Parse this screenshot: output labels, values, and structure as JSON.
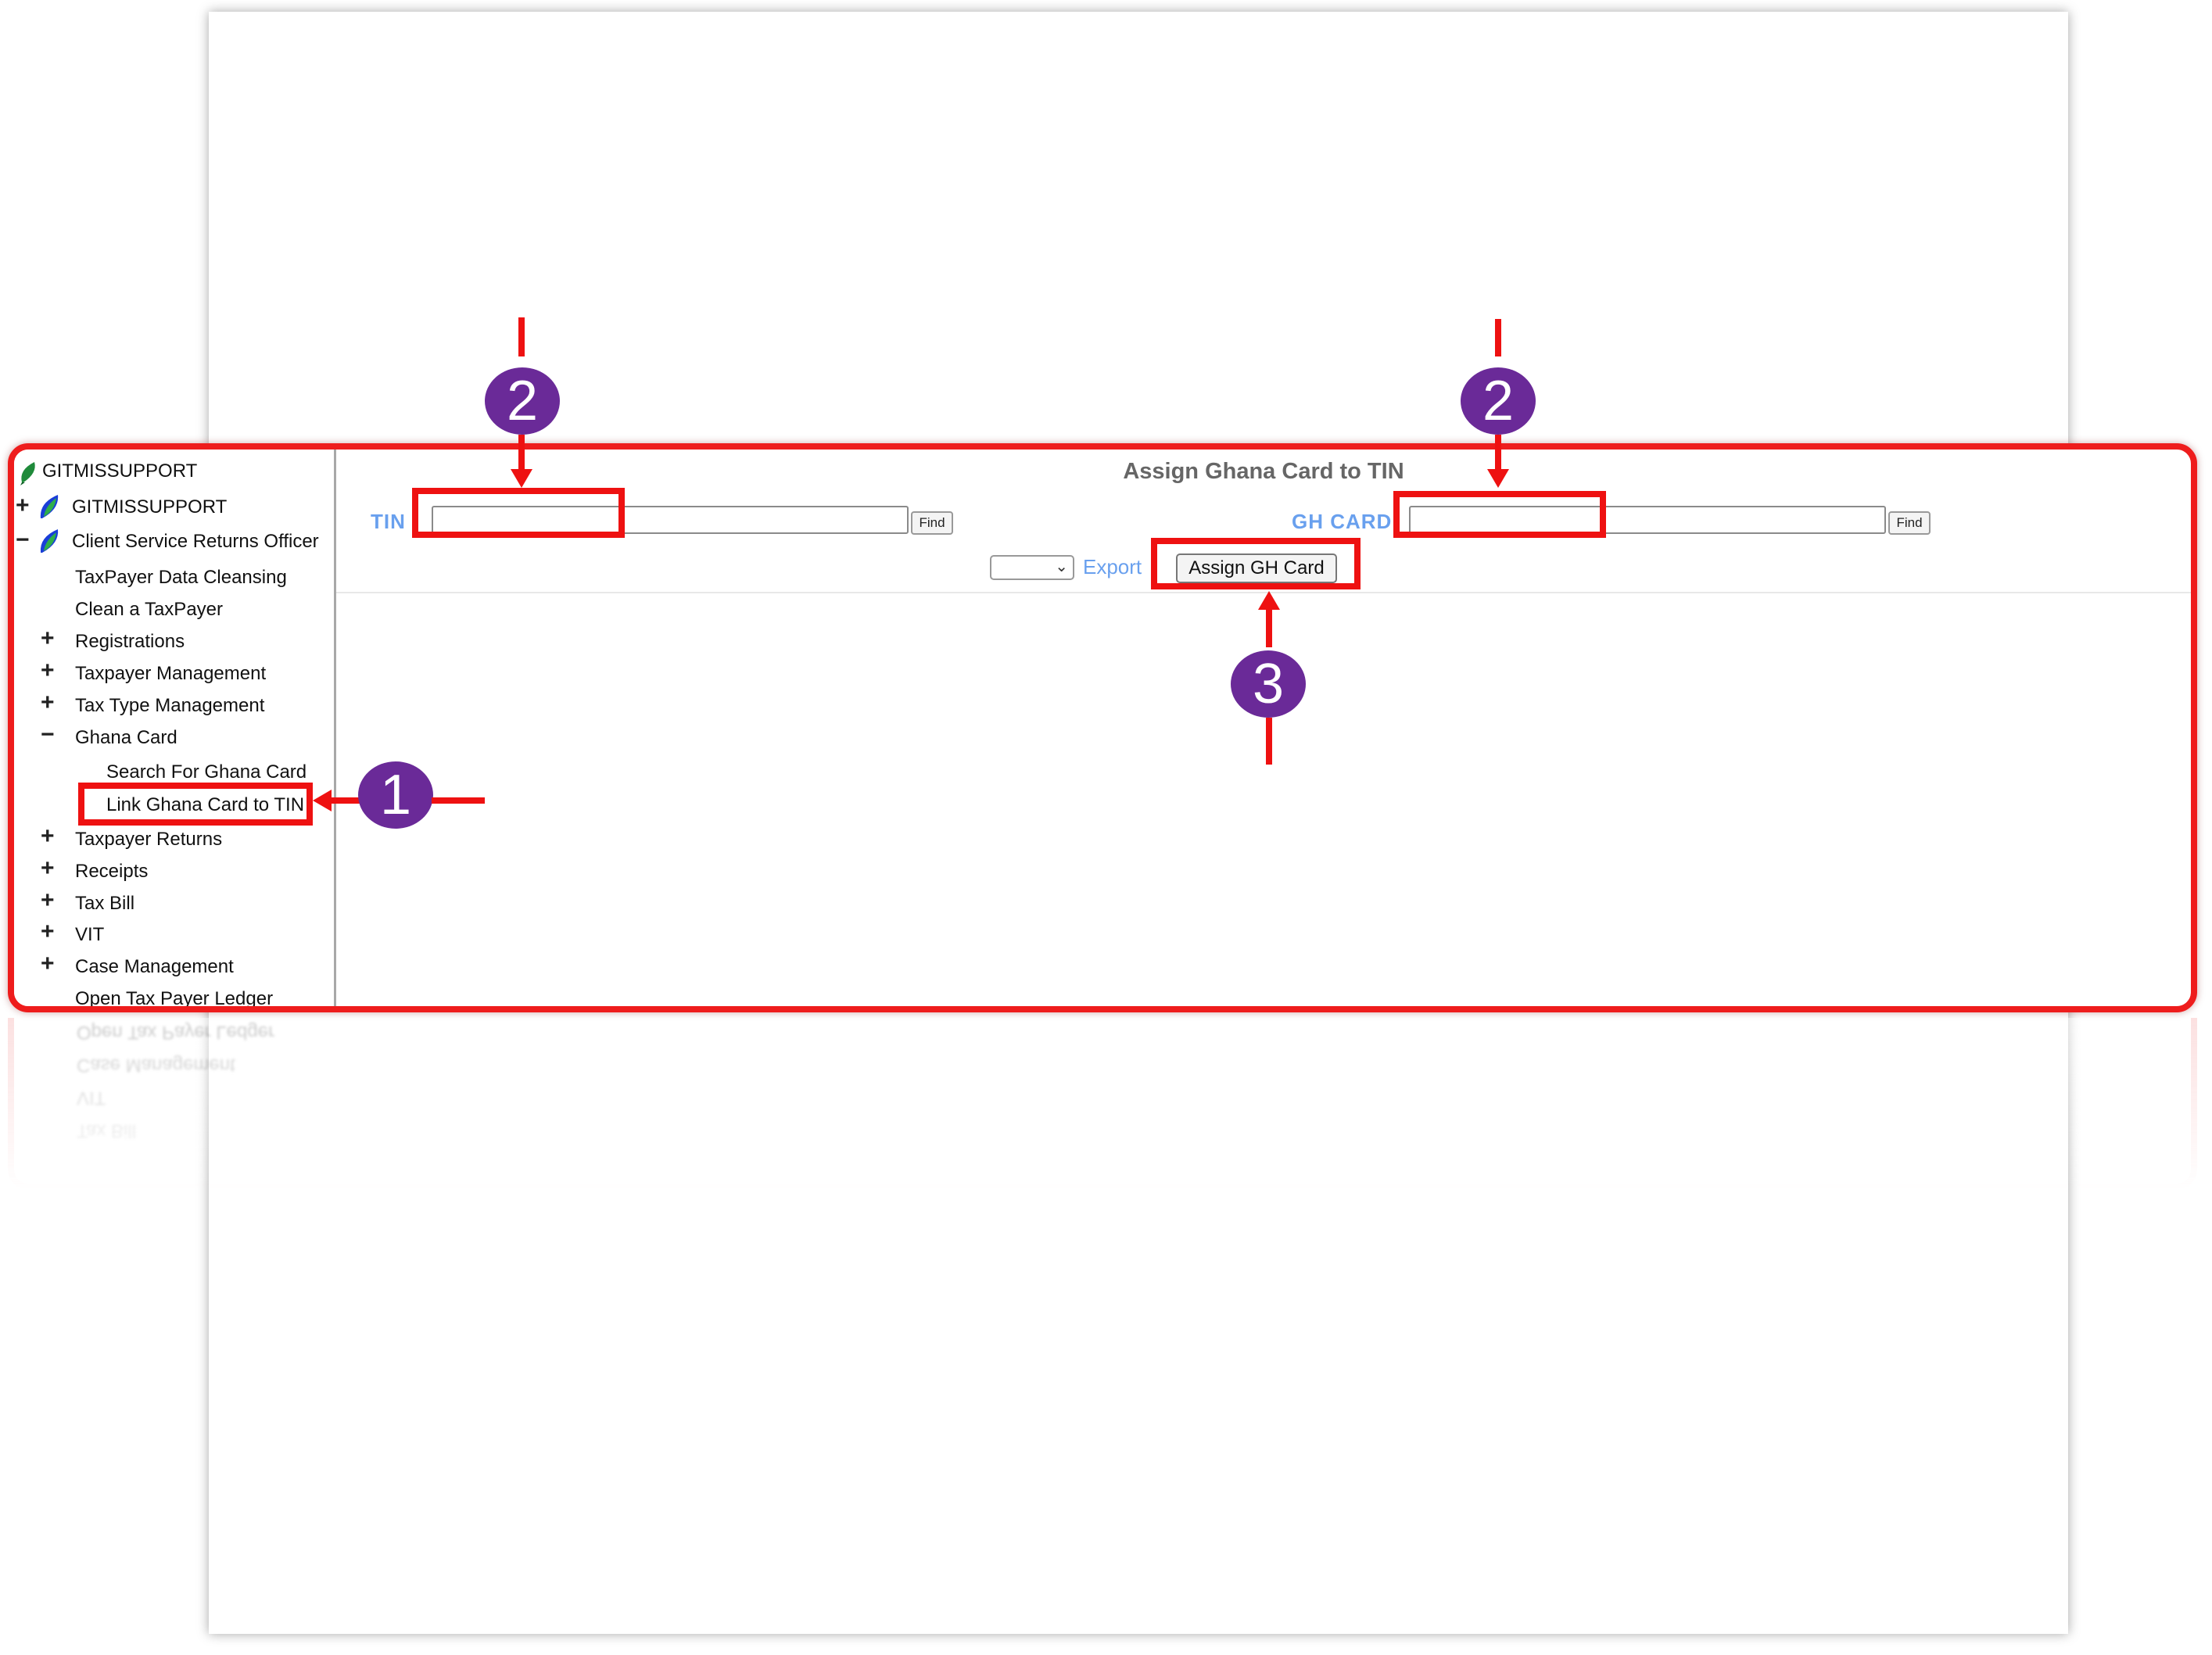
{
  "sidebar": {
    "root": {
      "label": "GITMISSUPPORT"
    },
    "groups": [
      {
        "label": "GITMISSUPPORT",
        "toggle": "+"
      },
      {
        "label": "Client Service Returns Officer",
        "toggle": "−"
      }
    ],
    "items": [
      {
        "label": "TaxPayer Data Cleansing",
        "toggle": ""
      },
      {
        "label": "Clean a TaxPayer",
        "toggle": ""
      },
      {
        "label": "Registrations",
        "toggle": "+"
      },
      {
        "label": "Taxpayer Management",
        "toggle": "+"
      },
      {
        "label": "Tax Type Management",
        "toggle": "+"
      },
      {
        "label": "Ghana Card",
        "toggle": "−"
      },
      {
        "label": "Taxpayer Returns",
        "toggle": "+"
      },
      {
        "label": "Receipts",
        "toggle": "+"
      },
      {
        "label": "Tax Bill",
        "toggle": "+"
      },
      {
        "label": "VIT",
        "toggle": "+"
      },
      {
        "label": "Case Management",
        "toggle": "+"
      },
      {
        "label": "Open Tax Payer Ledger",
        "toggle": ""
      }
    ],
    "ghana_card_children": [
      {
        "label": "Search For Ghana Card"
      },
      {
        "label": "Link Ghana Card to TIN"
      }
    ]
  },
  "main": {
    "title": "Assign Ghana Card to TIN",
    "tin_label": "TIN",
    "tin_value": "",
    "ghcard_label": "GH CARD",
    "ghcard_value": "",
    "find_label": "Find",
    "export_format_value": "",
    "export_label": "Export",
    "assign_button_label": "Assign GH Card"
  },
  "annotations": {
    "badge_1": "1",
    "badge_2": "2",
    "badge_3": "3"
  },
  "colors": {
    "highlight": "#ee1111",
    "badge": "#6a2a98",
    "label_blue": "#69a0ee"
  }
}
